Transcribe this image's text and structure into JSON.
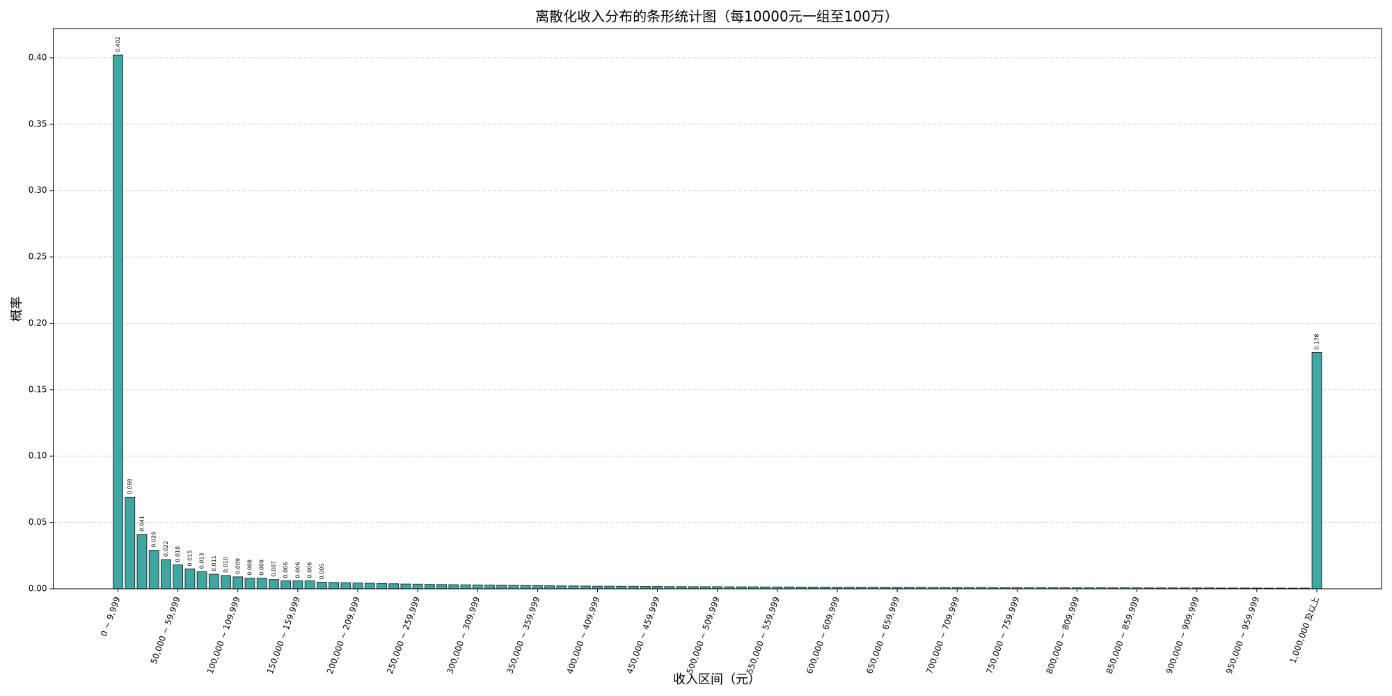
{
  "chart_data": {
    "type": "bar",
    "title": "离散化收入分布的条形统计图（每10000元一组至100万）",
    "x_label": "收入区间（元）",
    "y_label": "概率",
    "color": "#3fa7a3",
    "edge_color": "#2b2b2b",
    "grid": true,
    "ylim": [
      0,
      0.422
    ],
    "yticks": [
      {
        "value": 0,
        "label": "0.00"
      },
      {
        "value": 0.05,
        "label": "0.05"
      },
      {
        "value": 0.1,
        "label": "0.10"
      },
      {
        "value": 0.15,
        "label": "0.15"
      },
      {
        "value": 0.2,
        "label": "0.20"
      },
      {
        "value": 0.25,
        "label": "0.25"
      },
      {
        "value": 0.3,
        "label": "0.30"
      },
      {
        "value": 0.35,
        "label": "0.35"
      },
      {
        "value": 0.4,
        "label": "0.40"
      }
    ],
    "categories": [
      "0 ~ 9,999",
      null,
      null,
      null,
      null,
      "50,000 ~ 59,999",
      null,
      null,
      null,
      null,
      "100,000 ~ 109,999",
      null,
      null,
      null,
      null,
      "150,000 ~ 159,999",
      null,
      null,
      null,
      null,
      "200,000 ~ 209,999",
      null,
      null,
      null,
      null,
      "250,000 ~ 259,999",
      null,
      null,
      null,
      null,
      "300,000 ~ 309,999",
      null,
      null,
      null,
      null,
      "350,000 ~ 359,999",
      null,
      null,
      null,
      null,
      "400,000 ~ 409,999",
      null,
      null,
      null,
      null,
      "450,000 ~ 459,999",
      null,
      null,
      null,
      null,
      "500,000 ~ 509,999",
      null,
      null,
      null,
      null,
      "550,000 ~ 559,999",
      null,
      null,
      null,
      null,
      "600,000 ~ 609,999",
      null,
      null,
      null,
      null,
      "650,000 ~ 659,999",
      null,
      null,
      null,
      null,
      "700,000 ~ 709,999",
      null,
      null,
      null,
      null,
      "750,000 ~ 759,999",
      null,
      null,
      null,
      null,
      "800,000 ~ 809,999",
      null,
      null,
      null,
      null,
      "850,000 ~ 859,999",
      null,
      null,
      null,
      null,
      "900,000 ~ 909,999",
      null,
      null,
      null,
      null,
      "950,000 ~ 959,999",
      null,
      null,
      null,
      null,
      "1,000,000 及以上"
    ],
    "values": [
      0.402,
      0.069,
      0.041,
      0.029,
      0.022,
      0.018,
      0.015,
      0.013,
      0.011,
      0.01,
      0.009,
      0.008,
      0.008,
      0.007,
      0.006,
      0.006,
      0.006,
      0.005,
      0.0048,
      0.0046,
      0.0044,
      0.0042,
      0.004,
      0.0038,
      0.0036,
      0.0035,
      0.0033,
      0.0032,
      0.0031,
      0.003,
      0.0029,
      0.0028,
      0.0027,
      0.0026,
      0.0025,
      0.0024,
      0.0023,
      0.0022,
      0.0022,
      0.0021,
      0.002,
      0.002,
      0.0019,
      0.0019,
      0.0018,
      0.0018,
      0.0017,
      0.0017,
      0.0016,
      0.0016,
      0.0016,
      0.0015,
      0.0015,
      0.0015,
      0.0014,
      0.0014,
      0.0014,
      0.0013,
      0.0013,
      0.0013,
      0.0012,
      0.0012,
      0.0012,
      0.0012,
      0.0011,
      0.0011,
      0.0011,
      0.0011,
      0.001,
      0.001,
      0.001,
      0.001,
      0.001,
      0.0009,
      0.0009,
      0.0009,
      0.0009,
      0.0009,
      0.0009,
      0.0008,
      0.0008,
      0.0008,
      0.0008,
      0.0008,
      0.0008,
      0.0008,
      0.0007,
      0.0007,
      0.0007,
      0.0007,
      0.0007,
      0.0007,
      0.0006,
      0.0006,
      0.0006,
      0.0006,
      0.0005,
      0.0005,
      0.0005,
      0.0005,
      0.178
    ],
    "value_labels": [
      "0.402",
      "0.069",
      "0.041",
      "0.029",
      "0.022",
      "0.018",
      "0.015",
      "0.013",
      "0.011",
      "0.010",
      "0.009",
      "0.008",
      "0.008",
      "0.007",
      "0.006",
      "0.006",
      "0.006",
      "0.005",
      null,
      null,
      null,
      null,
      null,
      null,
      null,
      null,
      null,
      null,
      null,
      null,
      null,
      null,
      null,
      null,
      null,
      null,
      null,
      null,
      null,
      null,
      null,
      null,
      null,
      null,
      null,
      null,
      null,
      null,
      null,
      null,
      null,
      null,
      null,
      null,
      null,
      null,
      null,
      null,
      null,
      null,
      null,
      null,
      null,
      null,
      null,
      null,
      null,
      null,
      null,
      null,
      null,
      null,
      null,
      null,
      null,
      null,
      null,
      null,
      null,
      null,
      null,
      null,
      null,
      null,
      null,
      null,
      null,
      null,
      null,
      null,
      null,
      null,
      null,
      null,
      null,
      null,
      null,
      null,
      null,
      null,
      "0.178"
    ]
  }
}
